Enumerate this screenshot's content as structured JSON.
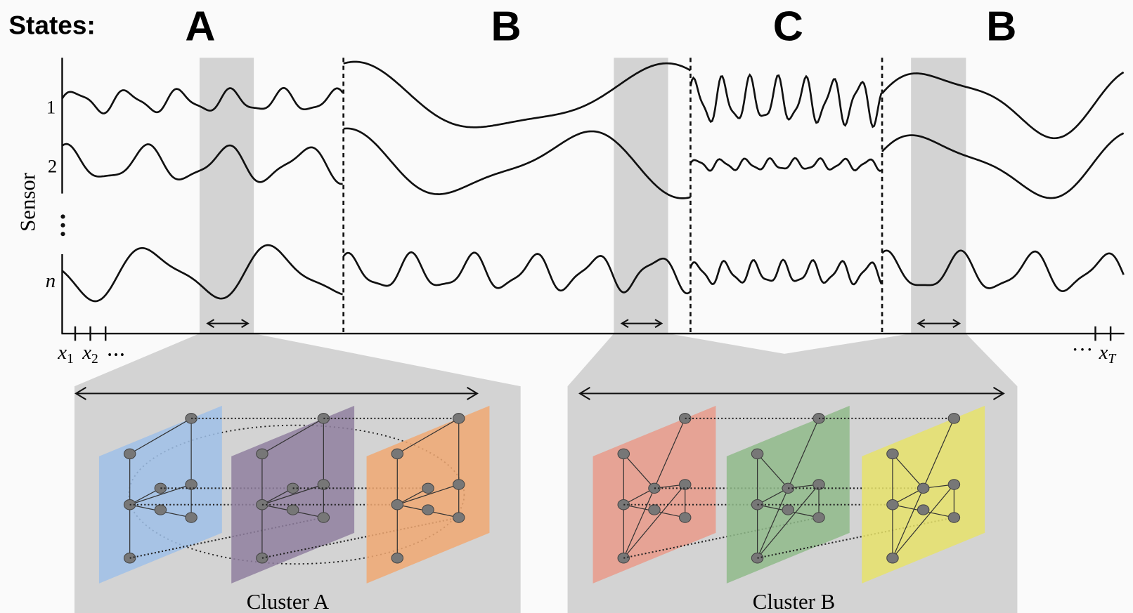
{
  "header": {
    "title": "States:",
    "states": [
      "A",
      "B",
      "C",
      "B"
    ]
  },
  "plot": {
    "y_label": "Sensor",
    "sensors": [
      "1",
      "2",
      "n"
    ],
    "x_start": [
      {
        "base": "x",
        "sub": "1"
      },
      {
        "base": "x",
        "sub": "2"
      }
    ],
    "start_ellipsis": "•••",
    "end_ellipsis": "···",
    "x_end": {
      "base": "x",
      "sub": "T"
    }
  },
  "clusters": [
    {
      "label": "Cluster A"
    },
    {
      "label": "Cluster B"
    }
  ]
}
